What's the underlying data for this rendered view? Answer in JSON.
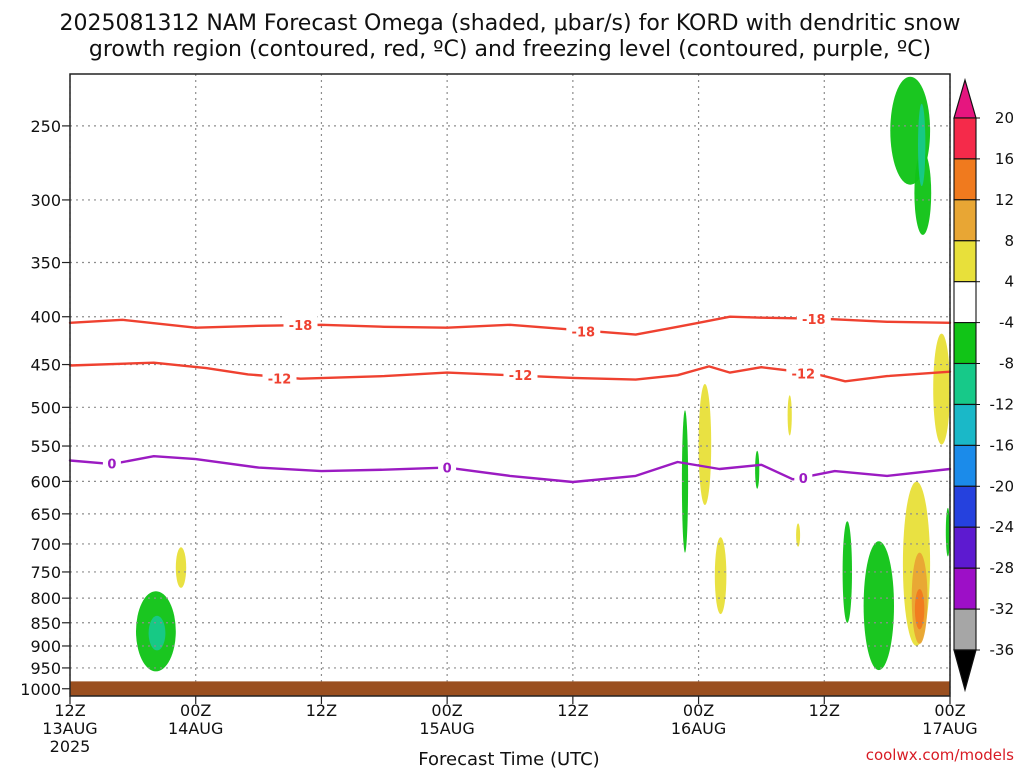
{
  "title_line1": "2025081312 NAM Forecast Omega (shaded, μbar/s) for KORD with dendritic snow",
  "title_line2": "growth region (contoured, red, ºC) and freezing level (contoured, purple, ºC)",
  "credit": "coolwx.com/models",
  "chart_data": {
    "type": "time-height",
    "title": "2025081312 NAM Forecast Omega (shaded, μbar/s) for KORD with dendritic snow growth region (contoured, red, ºC) and freezing level (contoured, purple, ºC)",
    "xlabel": "Forecast Time (UTC)",
    "ylabel": "",
    "x_ticks": [
      {
        "hour": 0,
        "line1": "12Z",
        "line2": "13AUG",
        "line3": "2025"
      },
      {
        "hour": 12,
        "line1": "00Z",
        "line2": "14AUG",
        "line3": ""
      },
      {
        "hour": 24,
        "line1": "12Z",
        "line2": "",
        "line3": ""
      },
      {
        "hour": 36,
        "line1": "00Z",
        "line2": "15AUG",
        "line3": ""
      },
      {
        "hour": 48,
        "line1": "12Z",
        "line2": "",
        "line3": ""
      },
      {
        "hour": 60,
        "line1": "00Z",
        "line2": "16AUG",
        "line3": ""
      },
      {
        "hour": 72,
        "line1": "12Z",
        "line2": "",
        "line3": ""
      },
      {
        "hour": 84,
        "line1": "00Z",
        "line2": "17AUG",
        "line3": ""
      }
    ],
    "x_range_hours": [
      0,
      84
    ],
    "y_ticks_mb": [
      250,
      300,
      350,
      400,
      450,
      500,
      550,
      600,
      650,
      700,
      750,
      800,
      850,
      900,
      950,
      1000
    ],
    "y_range_mb": [
      200,
      1020
    ],
    "y_scale": "log-pressure",
    "grid": "dotted",
    "ground_level_mb": 982,
    "ground_color": "#9a4f1f",
    "colorbar": {
      "labels": [
        "20",
        "16",
        "12",
        "8",
        "4",
        "-4",
        "-8",
        "-12",
        "-16",
        "-20",
        "-24",
        "-28",
        "-32",
        "-36"
      ],
      "bands": [
        {
          "color": "#f52a4a"
        },
        {
          "color": "#f07a1e"
        },
        {
          "color": "#e8a634"
        },
        {
          "color": "#e8e03a"
        },
        {
          "color": "#ffffff"
        },
        {
          "color": "#11c417"
        },
        {
          "color": "#17c989"
        },
        {
          "color": "#1ab8c8"
        },
        {
          "color": "#1b8bea"
        },
        {
          "color": "#2541de"
        },
        {
          "color": "#5d1ad0"
        },
        {
          "color": "#9d0fc7"
        },
        {
          "color": "#a6a6a6"
        }
      ],
      "top_arrow_color": "#e6157f",
      "bottom_arrow_color": "#000000"
    },
    "contours": [
      {
        "level": "-18",
        "color": "#ef4130",
        "points": [
          [
            0,
            406
          ],
          [
            5,
            403
          ],
          [
            12,
            411
          ],
          [
            18,
            409
          ],
          [
            24,
            408
          ],
          [
            30,
            410
          ],
          [
            36,
            411
          ],
          [
            42,
            408
          ],
          [
            48,
            413
          ],
          [
            54,
            418
          ],
          [
            58,
            410
          ],
          [
            60,
            406
          ],
          [
            63,
            400
          ],
          [
            66,
            401
          ],
          [
            72,
            402
          ],
          [
            78,
            405
          ],
          [
            84,
            406
          ]
        ],
        "labels": [
          {
            "hour": 22,
            "mb": 408
          },
          {
            "hour": 49,
            "mb": 415
          },
          {
            "hour": 71,
            "mb": 402
          }
        ]
      },
      {
        "level": "-12",
        "color": "#ef4130",
        "points": [
          [
            0,
            451
          ],
          [
            8,
            448
          ],
          [
            13,
            454
          ],
          [
            17,
            461
          ],
          [
            22,
            466
          ],
          [
            30,
            463
          ],
          [
            36,
            459
          ],
          [
            42,
            462
          ],
          [
            48,
            465
          ],
          [
            54,
            467
          ],
          [
            58,
            462
          ],
          [
            61,
            452
          ],
          [
            63,
            459
          ],
          [
            66,
            453
          ],
          [
            71,
            460
          ],
          [
            74,
            469
          ],
          [
            78,
            463
          ],
          [
            84,
            458
          ]
        ],
        "labels": [
          {
            "hour": 20,
            "mb": 466
          },
          {
            "hour": 43,
            "mb": 462
          },
          {
            "hour": 70,
            "mb": 460
          }
        ]
      },
      {
        "level": "0",
        "color": "#9b1bc2",
        "points": [
          [
            0,
            570
          ],
          [
            4,
            575
          ],
          [
            8,
            564
          ],
          [
            12,
            568
          ],
          [
            18,
            580
          ],
          [
            24,
            585
          ],
          [
            30,
            583
          ],
          [
            36,
            580
          ],
          [
            42,
            592
          ],
          [
            48,
            601
          ],
          [
            54,
            592
          ],
          [
            58,
            572
          ],
          [
            62,
            582
          ],
          [
            66,
            576
          ],
          [
            69,
            597
          ],
          [
            73,
            585
          ],
          [
            78,
            592
          ],
          [
            84,
            582
          ]
        ],
        "labels": [
          {
            "hour": 4,
            "mb": 574
          },
          {
            "hour": 36,
            "mb": 580
          },
          {
            "hour": 70,
            "mb": 595
          }
        ]
      }
    ],
    "omega_features": [
      {
        "category": "-4 to -8",
        "color": "#11c417",
        "center_hour": 8.2,
        "center_mb": 868,
        "half_width_hours": 1.9,
        "half_height_mb": 90
      },
      {
        "category": "-8 to -12",
        "color": "#17c989",
        "center_hour": 8.3,
        "center_mb": 872,
        "half_width_hours": 0.8,
        "half_height_mb": 38
      },
      {
        "category": "4 to 8",
        "color": "#e8e03a",
        "center_hour": 10.6,
        "center_mb": 742,
        "half_width_hours": 0.5,
        "half_height_mb": 38
      },
      {
        "category": "-4 to -8",
        "color": "#11c417",
        "center_hour": 58.7,
        "center_mb": 600,
        "half_width_hours": 0.3,
        "half_height_mb": 115
      },
      {
        "category": "4 to 8",
        "color": "#e8e03a",
        "center_hour": 60.6,
        "center_mb": 548,
        "half_width_hours": 0.6,
        "half_height_mb": 88
      },
      {
        "category": "4 to 8",
        "color": "#e8e03a",
        "center_hour": 62.1,
        "center_mb": 757,
        "half_width_hours": 0.55,
        "half_height_mb": 75
      },
      {
        "category": "-4 to -8",
        "color": "#11c417",
        "center_hour": 65.6,
        "center_mb": 583,
        "half_width_hours": 0.2,
        "half_height_mb": 28
      },
      {
        "category": "4 to 8",
        "color": "#e8e03a",
        "center_hour": 68.7,
        "center_mb": 510,
        "half_width_hours": 0.2,
        "half_height_mb": 26
      },
      {
        "category": "4 to 8",
        "color": "#e8e03a",
        "center_hour": 69.5,
        "center_mb": 685,
        "half_width_hours": 0.15,
        "half_height_mb": 20
      },
      {
        "category": "-4 to -8",
        "color": "#11c417",
        "center_hour": 74.2,
        "center_mb": 750,
        "half_width_hours": 0.45,
        "half_height_mb": 100
      },
      {
        "category": "-4 to -8",
        "color": "#11c417",
        "center_hour": 77.2,
        "center_mb": 815,
        "half_width_hours": 1.45,
        "half_height_mb": 140
      },
      {
        "category": "4 to 8",
        "color": "#e8e03a",
        "center_hour": 80.8,
        "center_mb": 735,
        "half_width_hours": 1.3,
        "half_height_mb": 165
      },
      {
        "category": "8 to 12",
        "color": "#e8a634",
        "center_hour": 81.1,
        "center_mb": 800,
        "half_width_hours": 0.75,
        "half_height_mb": 95
      },
      {
        "category": "12 to 16",
        "color": "#f07a1e",
        "center_hour": 81.1,
        "center_mb": 822,
        "half_width_hours": 0.45,
        "half_height_mb": 42
      },
      {
        "category": "-4 to -8",
        "color": "#11c417",
        "center_hour": 83.8,
        "center_mb": 680,
        "half_width_hours": 0.2,
        "half_height_mb": 42
      },
      {
        "category": "4 to 8",
        "color": "#e8e03a",
        "center_hour": 83.2,
        "center_mb": 478,
        "half_width_hours": 0.8,
        "half_height_mb": 70
      },
      {
        "category": "-4 to -8",
        "color": "#11c417",
        "center_hour": 80.2,
        "center_mb": 253,
        "half_width_hours": 1.9,
        "half_height_mb": 36
      },
      {
        "category": "-4 to -8",
        "color": "#11c417",
        "center_hour": 81.4,
        "center_mb": 295,
        "half_width_hours": 0.8,
        "half_height_mb": 32
      },
      {
        "category": "-8 to -12",
        "color": "#17c989",
        "center_hour": 81.3,
        "center_mb": 262,
        "half_width_hours": 0.35,
        "half_height_mb": 28
      }
    ]
  }
}
